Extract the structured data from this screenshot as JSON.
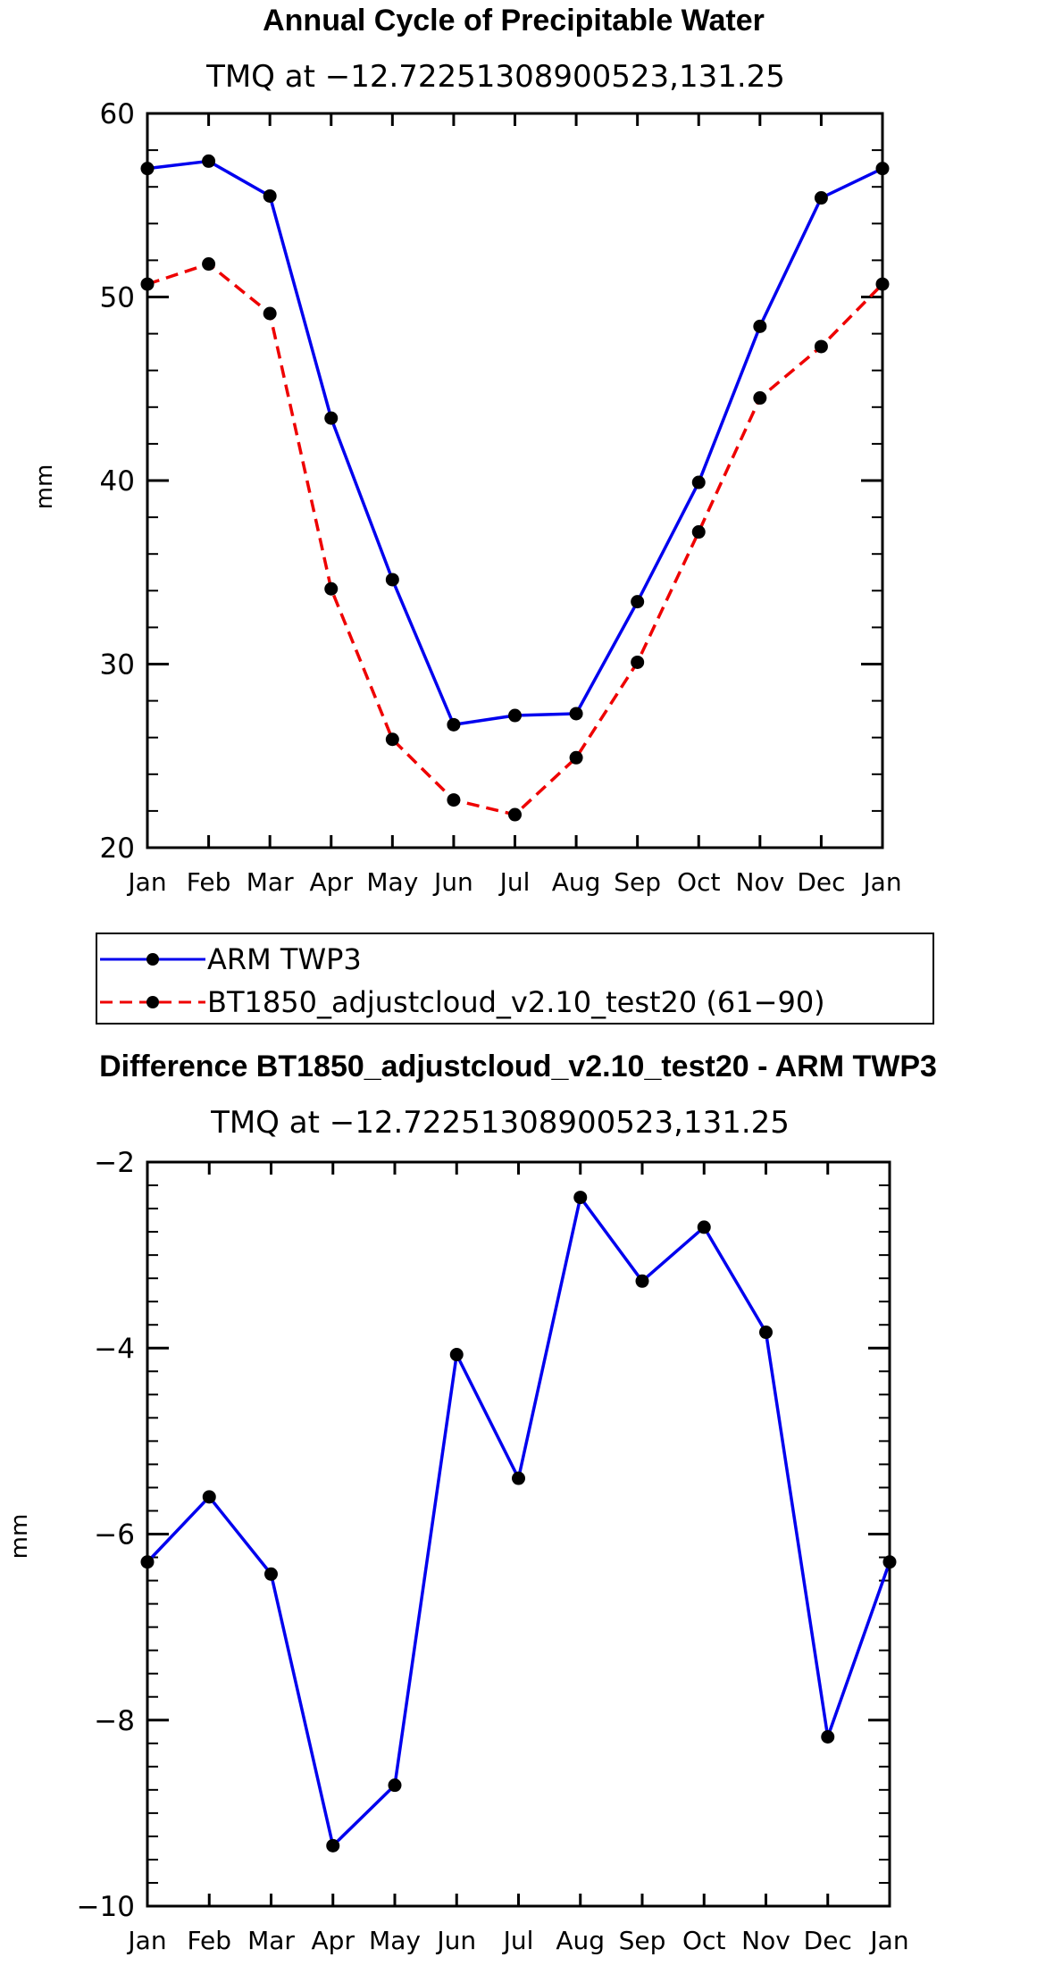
{
  "chart_data": [
    {
      "type": "line",
      "title": "Annual Cycle of Precipitable Water",
      "subtitle": "TMQ at −12.72251308900523,131.25",
      "ylabel": "mm",
      "xlabel": "",
      "categories": [
        "Jan",
        "Feb",
        "Mar",
        "Apr",
        "May",
        "Jun",
        "Jul",
        "Aug",
        "Sep",
        "Oct",
        "Nov",
        "Dec",
        "Jan"
      ],
      "ylim": [
        20,
        60
      ],
      "yticks": [
        20,
        30,
        40,
        50,
        60
      ],
      "ytick_labels": [
        "20",
        "30",
        "40",
        "50",
        "60"
      ],
      "legend": [
        "ARM TWP3",
        "BT1850_adjustcloud_v2.10_test20 (61−90)"
      ],
      "series": [
        {
          "name": "ARM TWP3",
          "color": "#0000ee",
          "style": "solid",
          "values": [
            57.0,
            57.4,
            55.5,
            43.4,
            34.6,
            26.7,
            27.2,
            27.3,
            33.4,
            39.9,
            48.4,
            55.4,
            57.0
          ]
        },
        {
          "name": "BT1850_adjustcloud_v2.10_test20 (61−90)",
          "color": "#ee0000",
          "style": "dashed",
          "values": [
            50.7,
            51.8,
            49.1,
            34.1,
            25.9,
            22.6,
            21.8,
            24.9,
            30.1,
            37.2,
            44.5,
            47.3,
            50.7
          ]
        }
      ]
    },
    {
      "type": "line",
      "title": "Difference BT1850_adjustcloud_v2.10_test20 - ARM TWP3",
      "subtitle": "TMQ at −12.72251308900523,131.25",
      "ylabel": "mm",
      "xlabel": "",
      "categories": [
        "Jan",
        "Feb",
        "Mar",
        "Apr",
        "May",
        "Jun",
        "Jul",
        "Aug",
        "Sep",
        "Oct",
        "Nov",
        "Dec",
        "Jan"
      ],
      "ylim": [
        -10,
        -2
      ],
      "yticks": [
        -10,
        -8,
        -6,
        -4,
        -2
      ],
      "ytick_labels": [
        "−10",
        "−8",
        "−6",
        "−4",
        "−2"
      ],
      "series": [
        {
          "name": "Difference",
          "color": "#0000ee",
          "style": "solid",
          "values": [
            -6.3,
            -5.6,
            -6.43,
            -9.35,
            -8.7,
            -4.07,
            -5.4,
            -2.38,
            -3.28,
            -2.7,
            -3.83,
            -8.18,
            -6.3
          ]
        }
      ]
    }
  ]
}
